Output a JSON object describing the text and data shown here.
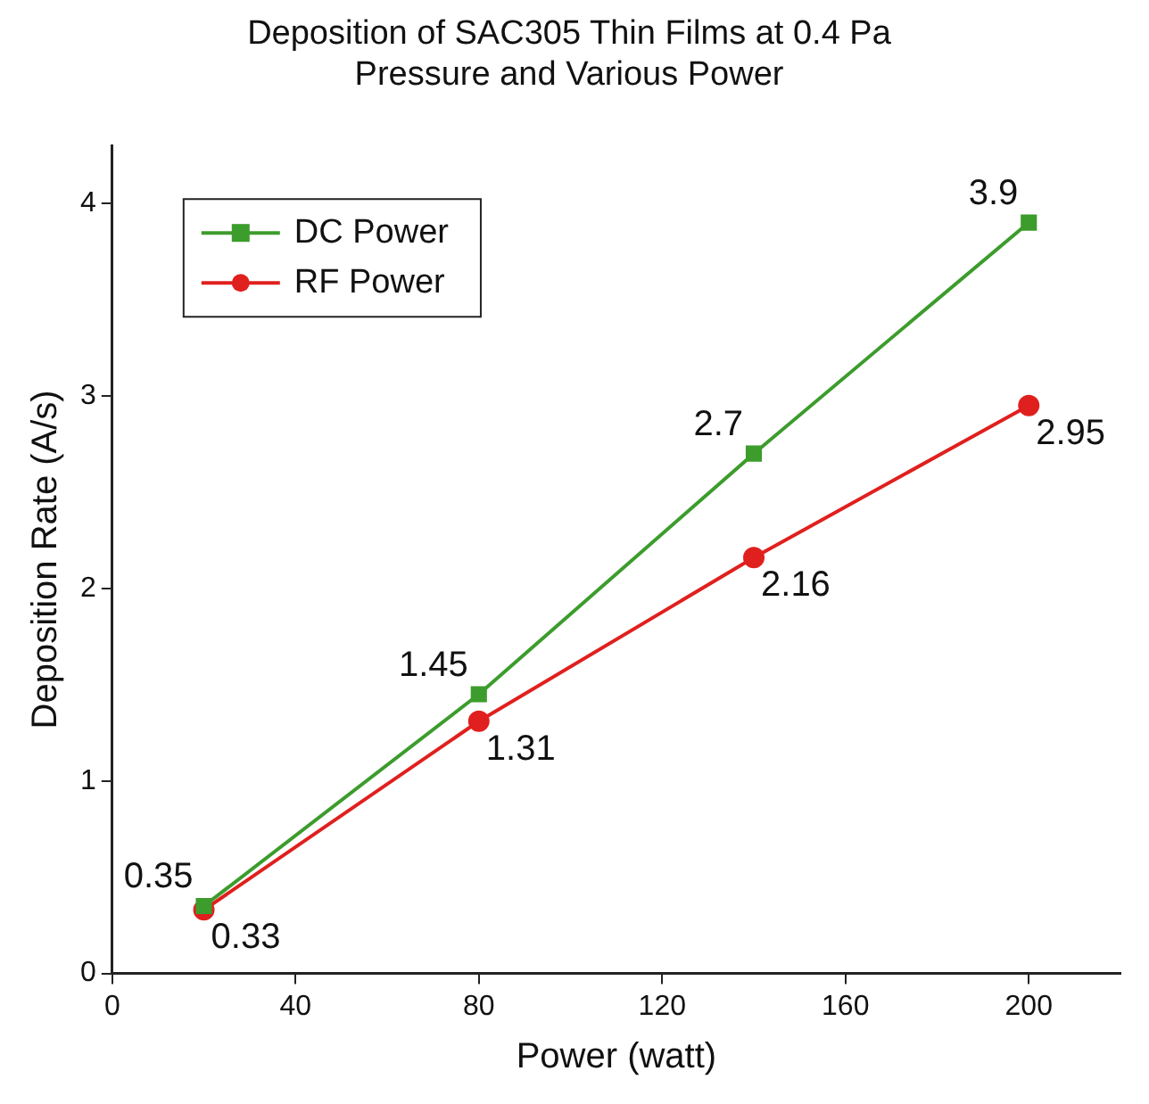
{
  "chart_data": {
    "type": "line",
    "title": "Deposition of SAC305 Thin Films at 0.4 Pa\nPressure and Various Power",
    "xlabel": "Power (watt)",
    "ylabel": "Deposition Rate (A/s)",
    "x": [
      20,
      80,
      140,
      200
    ],
    "series": [
      {
        "name": "DC Power",
        "color": "#3c9c2c",
        "values": [
          0.35,
          1.45,
          2.7,
          3.9
        ],
        "marker": "square"
      },
      {
        "name": "RF Power",
        "color": "#e0201e",
        "values": [
          0.33,
          1.31,
          2.16,
          2.95
        ],
        "marker": "circle"
      }
    ],
    "xlim": [
      0,
      220
    ],
    "xticks": [
      0,
      40,
      80,
      120,
      160,
      200
    ],
    "ylim": [
      0,
      4.3
    ],
    "yticks": [
      0,
      1,
      2,
      3,
      4
    ],
    "grid": false,
    "legend": "top left",
    "data_labels": true,
    "line_style": "solid"
  }
}
